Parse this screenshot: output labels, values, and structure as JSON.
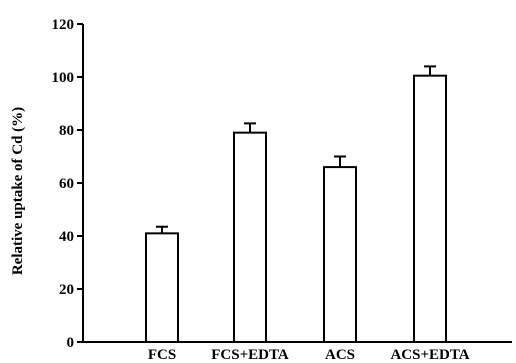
{
  "chart_data": {
    "type": "bar",
    "title": "",
    "xlabel": "",
    "ylabel": "Relative uptake of Cd (%)",
    "ylim": [
      0,
      120
    ],
    "yticks": [
      0,
      20,
      40,
      60,
      80,
      100,
      120
    ],
    "categories": [
      "FCS",
      "FCS+EDTA",
      "ACS",
      "ACS+EDTA"
    ],
    "values": [
      41,
      79,
      66,
      100.5
    ],
    "errors": [
      2.5,
      3.5,
      4,
      3.5
    ],
    "grid": false,
    "legend": "none",
    "colors": {
      "bar_fill": "#ffffff",
      "bar_stroke": "#000000",
      "axis": "#000000"
    }
  }
}
